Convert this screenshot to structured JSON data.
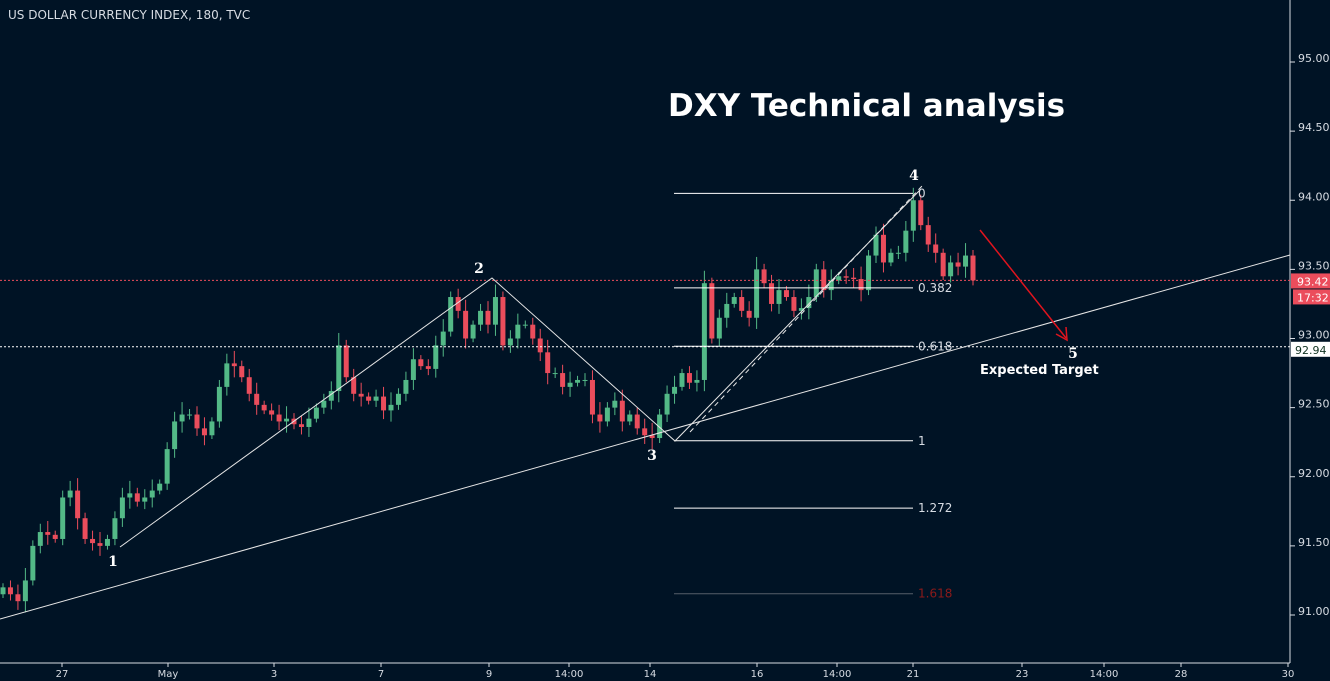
{
  "header": {
    "symbol": "US DOLLAR CURRENCY INDEX, 180, TVC"
  },
  "chart_data": {
    "type": "candlestick",
    "title": "DXY Technical analysis",
    "ylim": [
      90.75,
      95.35
    ],
    "y_ticks": [
      "95.00",
      "94.50",
      "94.00",
      "93.50",
      "93.00",
      "92.50",
      "92.00",
      "91.50",
      "91.00"
    ],
    "x_ticks": [
      "27",
      "May",
      "3",
      "7",
      "9",
      "14:00",
      "14",
      "16",
      "14:00",
      "21",
      "23",
      "14:00",
      "28",
      "30"
    ],
    "grid": false,
    "close": [
      91.2,
      91.15,
      91.1,
      91.25,
      91.5,
      91.6,
      91.58,
      91.55,
      91.85,
      91.9,
      91.7,
      91.55,
      91.52,
      91.5,
      91.55,
      91.7,
      91.85,
      91.88,
      91.82,
      91.85,
      91.9,
      91.95,
      92.2,
      92.4,
      92.45,
      92.45,
      92.35,
      92.3,
      92.4,
      92.65,
      92.82,
      92.8,
      92.72,
      92.6,
      92.52,
      92.48,
      92.45,
      92.4,
      92.42,
      92.38,
      92.36,
      92.42,
      92.5,
      92.55,
      92.62,
      92.95,
      92.72,
      92.6,
      92.58,
      92.55,
      92.58,
      92.48,
      92.52,
      92.6,
      92.7,
      92.85,
      92.8,
      92.78,
      92.95,
      93.05,
      93.3,
      93.2,
      93.0,
      93.1,
      93.2,
      93.1,
      93.3,
      92.95,
      93.0,
      93.1,
      93.1,
      93.0,
      92.9,
      92.75,
      92.75,
      92.65,
      92.68,
      92.7,
      92.7,
      92.45,
      92.4,
      92.5,
      92.55,
      92.4,
      92.45,
      92.35,
      92.3,
      92.28,
      92.45,
      92.6,
      92.65,
      92.75,
      92.68,
      92.7,
      93.4,
      93.0,
      93.15,
      93.25,
      93.3,
      93.2,
      93.15,
      93.5,
      93.4,
      93.25,
      93.35,
      93.3,
      93.2,
      93.22,
      93.3,
      93.5,
      93.35,
      93.42,
      93.45,
      93.44,
      93.43,
      93.35,
      93.6,
      93.75,
      93.55,
      93.62,
      93.62,
      93.78,
      94.0,
      93.82,
      93.68,
      93.62,
      93.45,
      93.55,
      93.52,
      93.6,
      93.42
    ],
    "last_price": "93.42",
    "countdown": "17:32",
    "marked_level": "92.94",
    "fibonacci": {
      "price_0": 94.05,
      "price_1": 92.26,
      "levels": [
        "0",
        "0.382",
        "0.618",
        "1",
        "1.272",
        "1.618"
      ]
    },
    "waves": [
      "1",
      "2",
      "3",
      "4",
      "5"
    ],
    "target_label": "Expected Target",
    "colors": {
      "up": "#53b987",
      "down": "#eb4d5c",
      "background": "#001325",
      "fib_1618": "#8b1a1a",
      "arrow": "#e0141e"
    }
  }
}
